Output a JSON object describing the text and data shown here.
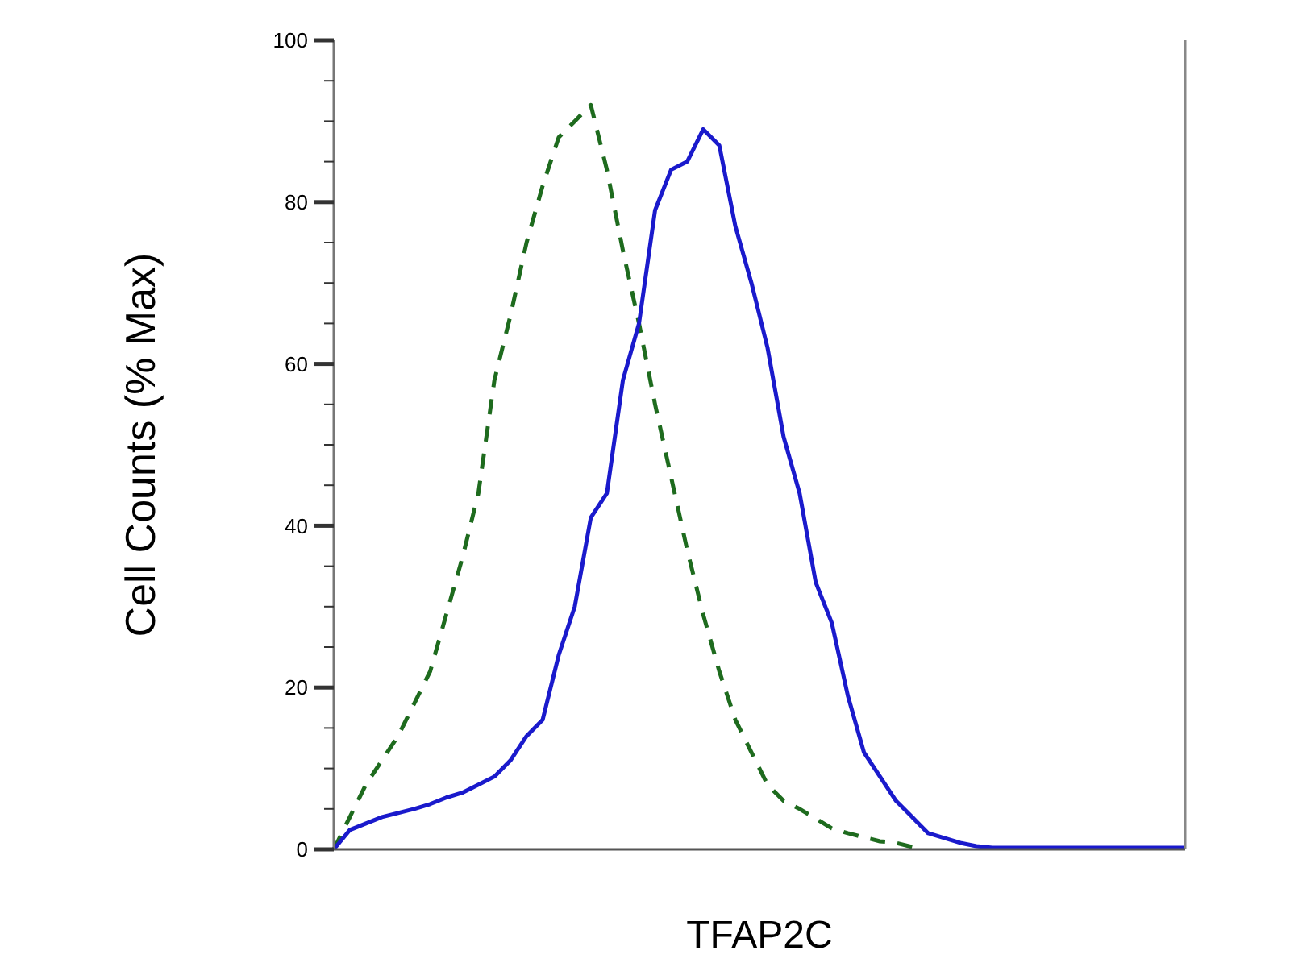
{
  "chart_data": {
    "type": "line",
    "xlabel": "TFAP2C",
    "ylabel": "Cell Counts (% Max)",
    "categories": [
      null,
      null,
      null,
      null,
      null,
      null,
      null,
      null,
      null,
      null,
      null,
      null,
      null,
      null,
      null,
      null,
      null,
      null,
      null,
      null,
      null,
      null,
      null,
      null,
      null,
      null,
      null,
      null,
      null,
      null,
      null,
      null,
      null,
      null,
      null,
      null,
      null,
      null,
      null,
      null,
      null,
      null,
      null,
      null,
      null,
      null,
      null,
      null,
      null,
      null,
      null,
      null,
      null,
      null
    ],
    "ylim": [
      0,
      100
    ],
    "yticks": [
      0,
      {
        "value": 5,
        "label": null
      },
      {
        "value": 10,
        "label": null
      },
      {
        "value": 15,
        "label": null
      },
      20,
      {
        "value": 25,
        "label": null
      },
      {
        "value": 30,
        "label": null
      },
      {
        "value": 35,
        "label": null
      },
      40,
      {
        "value": 45,
        "label": null
      },
      {
        "value": 50,
        "label": null
      },
      {
        "value": 55,
        "label": null
      },
      60,
      {
        "value": 65,
        "label": null
      },
      {
        "value": 70,
        "label": null
      },
      {
        "value": 75,
        "label": null
      },
      80,
      {
        "value": 85,
        "label": null
      },
      {
        "value": 90,
        "label": null
      },
      {
        "value": 95,
        "label": null
      },
      100
    ],
    "grid": false,
    "series": [
      {
        "color": "#1e6b1e",
        "line_style": "dashed",
        "values": [
          0,
          4,
          8,
          11,
          14,
          18,
          22,
          29,
          36,
          44,
          58,
          66,
          75,
          82,
          88,
          90,
          92,
          84,
          74,
          65,
          55,
          46,
          37,
          29,
          22,
          16,
          12,
          8,
          6,
          5,
          3.8,
          2.6,
          2,
          1.5,
          1,
          0.8,
          0.3,
          null,
          null,
          null,
          null,
          null,
          null,
          null,
          null,
          null,
          null,
          null,
          null,
          null,
          null,
          null,
          null,
          null
        ]
      },
      {
        "color": "#1a1acc",
        "line_style": "solid",
        "values": [
          0,
          2.4,
          3.2,
          4,
          4.5,
          5,
          5.6,
          6.4,
          7,
          8,
          9,
          11,
          14,
          16,
          24,
          30,
          41,
          44,
          58,
          65,
          79,
          84,
          85,
          89,
          87,
          77,
          70,
          62,
          51,
          44,
          33,
          28,
          19,
          12,
          9,
          6,
          4,
          2,
          1.4,
          0.8,
          0.4,
          0.2,
          0.2,
          0.2,
          0.2,
          0.2,
          0.2,
          0.2,
          0.2,
          0.2,
          0.2,
          0.2,
          0.2,
          0.2
        ]
      }
    ]
  }
}
